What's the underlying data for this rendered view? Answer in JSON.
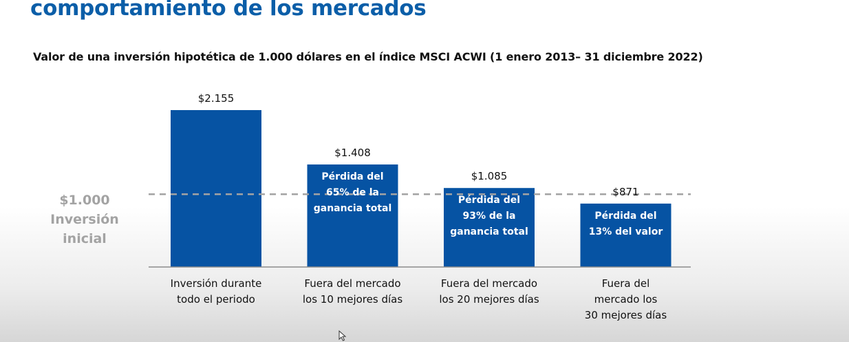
{
  "slide": {
    "heading": "comportamiento de los mercados"
  },
  "chart_data": {
    "type": "bar",
    "title": "Valor de una inversión hipotética de 1.000 dólares en el índice MSCI ACWI (1 enero 2013– 31 diciembre 2022)",
    "xlabel": "",
    "ylabel": "",
    "ylim": [
      0,
      2155
    ],
    "grid": false,
    "currency": "$",
    "categories": [
      [
        "Inversión durante",
        "todo el periodo"
      ],
      [
        "Fuera del mercado",
        "los 10 mejores días"
      ],
      [
        "Fuera del mercado",
        "los 20 mejores días"
      ],
      [
        "Fuera del",
        "mercado los",
        "30 mejores días"
      ]
    ],
    "values": [
      2155,
      1408,
      1085,
      871
    ],
    "value_labels": [
      "$2.155",
      "$1.408",
      "$1.085",
      "$871"
    ],
    "bar_annotations": [
      [],
      [
        "Pérdida del",
        "65% de la",
        "ganancia total"
      ],
      [
        "Pérdida del",
        "93% de la",
        "ganancia total"
      ],
      [
        "Pérdida del",
        "13% del valor"
      ]
    ],
    "reference_line": {
      "value": 1000,
      "label_value": "$1.000",
      "label_text": [
        "Inversión",
        "inicial"
      ]
    },
    "colors": {
      "bar": "#0653a3",
      "reference": "#a3a3a3",
      "axis": "#8c8c8c",
      "text": "#111111",
      "annotation": "#ffffff"
    }
  }
}
